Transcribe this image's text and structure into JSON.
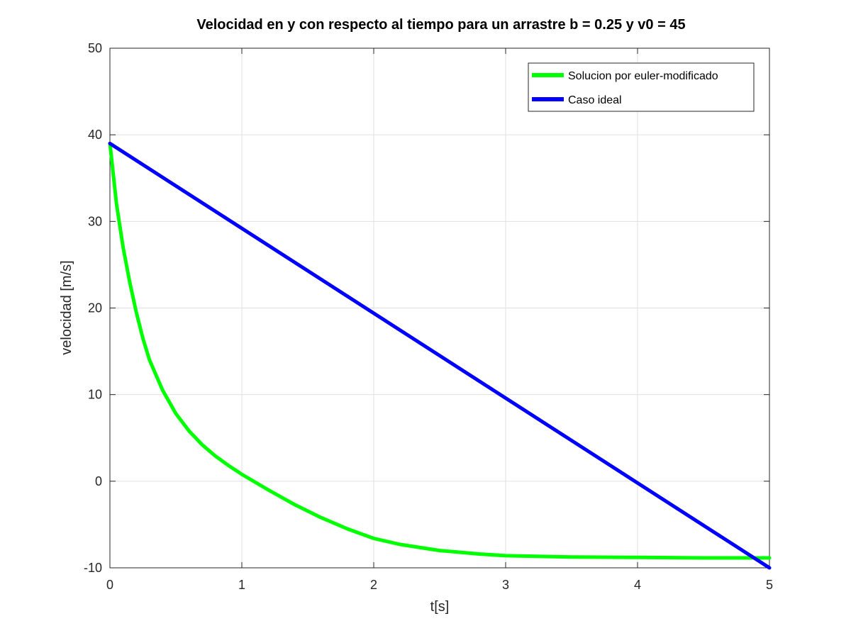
{
  "chart_data": {
    "type": "line",
    "title": "Velocidad en y con respecto al tiempo para un arrastre b = 0.25 y  v0 = 45",
    "xlabel": "t[s]",
    "ylabel": "velocidad [m/s]",
    "xlim": [
      0,
      5
    ],
    "ylim": [
      -10,
      50
    ],
    "xticks": [
      0,
      1,
      2,
      3,
      4,
      5
    ],
    "yticks": [
      -10,
      0,
      10,
      20,
      30,
      40,
      50
    ],
    "grid": true,
    "legend_position": "top-right",
    "series": [
      {
        "name": "Solucion por euler-modificado",
        "color": "#00ff00",
        "x": [
          0,
          0.05,
          0.1,
          0.15,
          0.2,
          0.25,
          0.3,
          0.4,
          0.5,
          0.6,
          0.7,
          0.8,
          0.9,
          1.0,
          1.2,
          1.4,
          1.6,
          1.8,
          2.0,
          2.2,
          2.5,
          2.8,
          3.0,
          3.5,
          4.0,
          4.5,
          5.0
        ],
        "y": [
          39,
          32,
          27,
          23,
          19.5,
          16.5,
          14,
          10.5,
          7.8,
          5.8,
          4.2,
          2.9,
          1.8,
          0.8,
          -1,
          -2.7,
          -4.2,
          -5.5,
          -6.6,
          -7.3,
          -8.0,
          -8.4,
          -8.6,
          -8.75,
          -8.8,
          -8.85,
          -8.85
        ]
      },
      {
        "name": "Caso ideal",
        "color": "#0000ff",
        "x": [
          0,
          5
        ],
        "y": [
          39,
          -10
        ]
      }
    ]
  }
}
